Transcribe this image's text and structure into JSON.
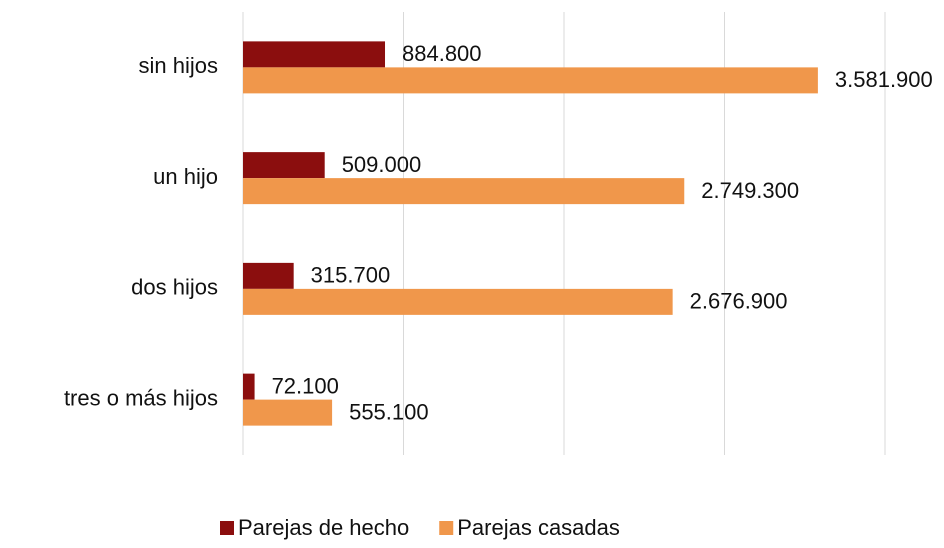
{
  "chart_data": {
    "type": "barh",
    "categories": [
      "sin hijos",
      "un hijo",
      "dos hijos",
      "tres o más hijos"
    ],
    "series": [
      {
        "name": "Parejas de hecho",
        "color": "#8b0e0e",
        "values": [
          884800,
          509000,
          315700,
          72100
        ],
        "value_labels": [
          "884.800",
          "509.000",
          "315.700",
          "72.100"
        ]
      },
      {
        "name": "Parejas casadas",
        "color": "#f0974b",
        "values": [
          3581900,
          2749300,
          2676900,
          555100
        ],
        "value_labels": [
          "3.581.900",
          "2.749.300",
          "2.676.900",
          "555.100"
        ]
      }
    ],
    "xlim": [
      0,
      4000000
    ],
    "xticks": [
      0,
      1000000,
      2000000,
      3000000,
      4000000
    ],
    "grid": true,
    "legend": "bottom"
  }
}
